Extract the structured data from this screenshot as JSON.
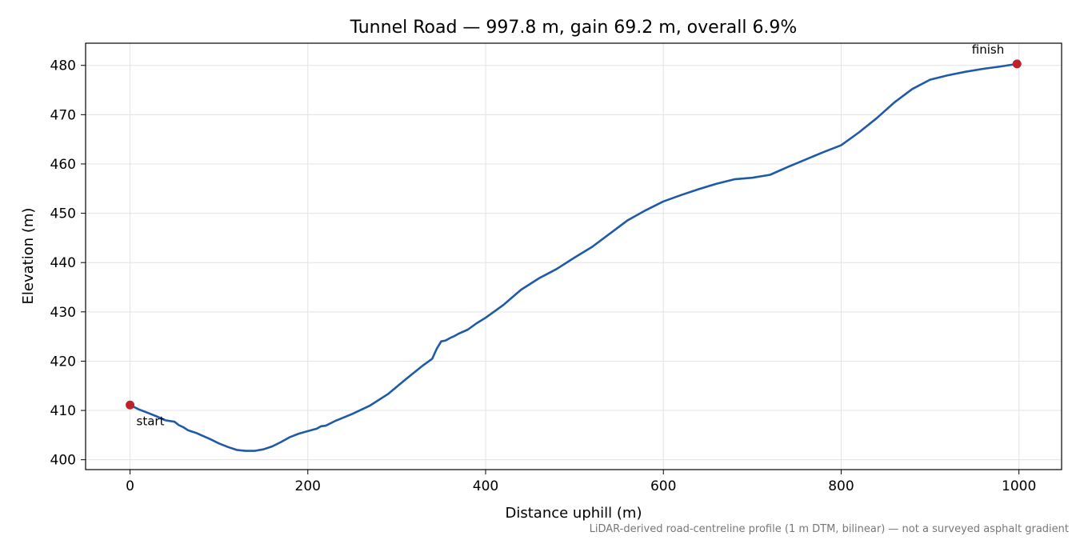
{
  "chart_data": {
    "type": "line",
    "title": "Tunnel Road — 997.8 m, gain 69.2 m, overall 6.9%",
    "xlabel": "Distance uphill (m)",
    "ylabel": "Elevation (m)",
    "xlim": [
      -50,
      1048
    ],
    "ylim": [
      398,
      484.5
    ],
    "xticks": [
      0,
      200,
      400,
      600,
      800,
      1000
    ],
    "yticks": [
      400,
      410,
      420,
      430,
      440,
      450,
      460,
      470,
      480
    ],
    "grid": true,
    "line_color": "#1f5aa8",
    "marker_color": "#c0202a",
    "footnote": "LiDAR-derived road-centreline profile (1 m DTM, bilinear) — not a surveyed asphalt gradient",
    "annotations": [
      {
        "text": "start",
        "x": 0,
        "y": 411.1
      },
      {
        "text": "finish",
        "x": 997.8,
        "y": 480.3
      }
    ],
    "series": [
      {
        "x": [
          0,
          10,
          20,
          30,
          40,
          50,
          55,
          60,
          65,
          70,
          75,
          80,
          90,
          100,
          110,
          120,
          130,
          140,
          150,
          160,
          170,
          180,
          190,
          200,
          210,
          215,
          220,
          230,
          250,
          270,
          290,
          310,
          330,
          340,
          345,
          350,
          355,
          360,
          365,
          370,
          380,
          390,
          400,
          420,
          440,
          460,
          480,
          500,
          520,
          540,
          560,
          580,
          600,
          620,
          640,
          660,
          680,
          700,
          720,
          740,
          760,
          780,
          800,
          820,
          840,
          860,
          880,
          900,
          920,
          940,
          960,
          980,
          997.8
        ],
        "y": [
          411.1,
          410.2,
          409.5,
          408.8,
          408.0,
          407.7,
          407.0,
          406.6,
          406.0,
          405.7,
          405.4,
          405.0,
          404.2,
          403.3,
          402.6,
          402.0,
          401.8,
          401.8,
          402.1,
          402.7,
          403.6,
          404.6,
          405.3,
          405.8,
          406.3,
          406.8,
          406.9,
          407.8,
          409.3,
          411.0,
          413.3,
          416.3,
          419.2,
          420.5,
          422.5,
          424.0,
          424.2,
          424.7,
          425.1,
          425.6,
          426.4,
          427.7,
          428.8,
          431.4,
          434.5,
          436.8,
          438.7,
          441.0,
          443.2,
          445.9,
          448.6,
          450.6,
          452.4,
          453.7,
          454.9,
          456.0,
          456.9,
          457.2,
          457.8,
          459.4,
          460.9,
          462.4,
          463.8,
          466.4,
          469.3,
          472.5,
          475.2,
          477.1,
          478.0,
          478.7,
          479.3,
          479.8,
          480.3
        ]
      }
    ]
  }
}
